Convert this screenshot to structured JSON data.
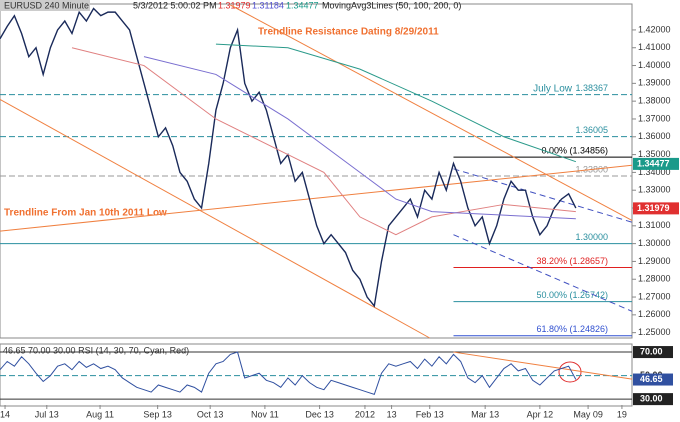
{
  "chart_data": {
    "type": "line",
    "header": {
      "instrument": "EURUSD 240 Minute",
      "time": "5/3/2012 5:00:02 PM",
      "price1": "1.31979",
      "price2": "1.31184",
      "price3": "1.34477",
      "indicator": "MovingAvg3Lines (50, 100, 200, 0)"
    },
    "annotations": [
      "Trendline Resistance Dating 8/29/2011",
      "Trendline From Jan 10th 2011 Low"
    ],
    "x": [
      0,
      1,
      2,
      3,
      4,
      5,
      6,
      7,
      8,
      9,
      10,
      11,
      12,
      13,
      14,
      15,
      16,
      17,
      18,
      19,
      20,
      21,
      22,
      23,
      24,
      25,
      26,
      27,
      28,
      29,
      30,
      31,
      32,
      33,
      34,
      35,
      36,
      37,
      38,
      39,
      40,
      41,
      42,
      43,
      44,
      45,
      46,
      47,
      48,
      49,
      50,
      51,
      52,
      53,
      54,
      55,
      56,
      57,
      58,
      59,
      60,
      61,
      62,
      63,
      64,
      65,
      66,
      67,
      68,
      69,
      70,
      71,
      72,
      73,
      74,
      75,
      76,
      77,
      78,
      79,
      80
    ],
    "xlim": [
      0,
      87.8
    ],
    "xticks": [
      {
        "value": 0.7,
        "label": "14"
      },
      {
        "value": 6.5,
        "label": "Jul 13"
      },
      {
        "value": 13.9,
        "label": "Aug 11"
      },
      {
        "value": 21.9,
        "label": "Sep 13"
      },
      {
        "value": 29.2,
        "label": "Oct 13"
      },
      {
        "value": 36.8,
        "label": "Nov 11"
      },
      {
        "value": 44.4,
        "label": "Dec 13"
      },
      {
        "value": 50.7,
        "label": "2012"
      },
      {
        "value": 54.4,
        "label": "13"
      },
      {
        "value": 59.7,
        "label": "Feb 13"
      },
      {
        "value": 67.4,
        "label": "Mar 13"
      },
      {
        "value": 75.0,
        "label": "Apr 12"
      },
      {
        "value": 81.7,
        "label": "May 09"
      },
      {
        "value": 86.4,
        "label": "19"
      }
    ],
    "ylim": [
      1.247,
      1.434
    ],
    "yticks": [
      {
        "value": 1.25,
        "label": "1.25000"
      },
      {
        "value": 1.26,
        "label": "1.26000"
      },
      {
        "value": 1.27,
        "label": "1.27000"
      },
      {
        "value": 1.28,
        "label": "1.28000"
      },
      {
        "value": 1.29,
        "label": "1.29000"
      },
      {
        "value": 1.3,
        "label": "1.30000"
      },
      {
        "value": 1.31,
        "label": "1.31000"
      },
      {
        "value": 1.32,
        "label": "1.32000"
      },
      {
        "value": 1.33,
        "label": "1.33000"
      },
      {
        "value": 1.34,
        "label": "1.34000"
      },
      {
        "value": 1.35,
        "label": "1.35000"
      },
      {
        "value": 1.36,
        "label": "1.36000"
      },
      {
        "value": 1.37,
        "label": "1.37000"
      },
      {
        "value": 1.38,
        "label": "1.38000"
      },
      {
        "value": 1.39,
        "label": "1.39000"
      },
      {
        "value": 1.4,
        "label": "1.40000"
      },
      {
        "value": 1.41,
        "label": "1.41000"
      },
      {
        "value": 1.42,
        "label": "1.42000"
      }
    ],
    "series": [
      {
        "name": "EURUSD",
        "color": "#1a2a5a",
        "values": [
          1.415,
          1.422,
          1.428,
          1.418,
          1.405,
          1.41,
          1.395,
          1.41,
          1.42,
          1.425,
          1.418,
          1.43,
          1.425,
          1.432,
          1.428,
          1.43,
          1.43,
          1.425,
          1.42,
          1.405,
          1.39,
          1.375,
          1.36,
          1.365,
          1.355,
          1.34,
          1.335,
          1.325,
          1.32,
          1.345,
          1.375,
          1.39,
          1.41,
          1.42,
          1.39,
          1.38,
          1.385,
          1.375,
          1.36,
          1.345,
          1.35,
          1.335,
          1.34,
          1.325,
          1.31,
          1.3,
          1.305,
          1.3,
          1.295,
          1.285,
          1.28,
          1.27,
          1.265,
          1.29,
          1.31,
          1.315,
          1.32,
          1.325,
          1.315,
          1.33,
          1.325,
          1.34,
          1.33,
          1.345,
          1.335,
          1.32,
          1.31,
          1.315,
          1.3,
          1.31,
          1.325,
          1.335,
          1.33,
          1.33,
          1.315,
          1.305,
          1.31,
          1.32,
          1.325,
          1.328,
          1.32
        ]
      },
      {
        "name": "MA 50",
        "color": "#e08080",
        "x": [
          10,
          20,
          30,
          40,
          45,
          50,
          55,
          60,
          70,
          80
        ],
        "values": [
          1.41,
          1.4,
          1.37,
          1.35,
          1.34,
          1.315,
          1.305,
          1.315,
          1.322,
          1.318
        ]
      },
      {
        "name": "MA 100",
        "color": "#7a6fd0",
        "x": [
          20,
          30,
          40,
          50,
          55,
          60,
          70,
          80
        ],
        "values": [
          1.405,
          1.395,
          1.37,
          1.34,
          1.325,
          1.318,
          1.316,
          1.314
        ]
      },
      {
        "name": "MA 200",
        "color": "#2a9a8a",
        "x": [
          30,
          40,
          50,
          60,
          70,
          80
        ],
        "values": [
          1.412,
          1.41,
          1.398,
          1.38,
          1.36,
          1.346
        ]
      }
    ],
    "levels": [
      {
        "value": 1.38367,
        "label": "1.38367",
        "note": "July Low",
        "color": "#2a8f9f",
        "dash": true,
        "x_start": 0
      },
      {
        "value": 1.36005,
        "label": "1.36005",
        "color": "#2a8f9f",
        "dash": true,
        "x_start": 0
      },
      {
        "value": 1.34856,
        "label": "0.00% (1.34856)",
        "color": "#000000",
        "dash": false,
        "x_start": 63
      },
      {
        "value": 1.338,
        "label": "1.33800",
        "color": "#999999",
        "dash": true,
        "x_start": 0
      },
      {
        "value": 1.3,
        "label": "1.30000",
        "color": "#2a8f9f",
        "dash": false,
        "x_start": 0
      },
      {
        "value": 1.28657,
        "label": "38.20% (1.28657)",
        "color": "#e02020",
        "dash": false,
        "x_start": 63
      },
      {
        "value": 1.26742,
        "label": "50.00% (1.26742)",
        "color": "#2a8f9f",
        "dash": false,
        "x_start": 63
      },
      {
        "value": 1.24826,
        "label": "61.80% (1.24826)",
        "color": "#3050d0",
        "dash": false,
        "x_start": 63
      }
    ],
    "trendlines": [
      {
        "color": "#f08040",
        "points": [
          [
            32,
            1.434
          ],
          [
            87.8,
            1.313
          ]
        ]
      },
      {
        "color": "#f08040",
        "points": [
          [
            0,
            1.307
          ],
          [
            87.8,
            1.344
          ]
        ]
      },
      {
        "color": "#f08040",
        "points": [
          [
            0,
            1.381
          ],
          [
            59.7,
            1.247
          ]
        ]
      },
      {
        "color": "#4050c0",
        "dash": true,
        "points": [
          [
            63,
            1.342
          ],
          [
            87.8,
            1.312
          ]
        ]
      },
      {
        "color": "#4050c0",
        "dash": true,
        "points": [
          [
            63,
            1.305
          ],
          [
            87.8,
            1.262
          ]
        ]
      }
    ],
    "price_tags": [
      {
        "value": 1.34477,
        "label": "1.34477",
        "color": "#1a9a8a"
      },
      {
        "value": 1.31979,
        "label": "1.31979",
        "color": "#e03030"
      }
    ],
    "rsi": {
      "header": "46.65 70.00 30.00 RSI (14, 30, 70, Cyan, Red)",
      "color": "#3050a0",
      "values": [
        55,
        62,
        58,
        66,
        60,
        52,
        45,
        50,
        58,
        60,
        55,
        62,
        57,
        60,
        56,
        58,
        55,
        48,
        44,
        40,
        38,
        36,
        42,
        40,
        38,
        36,
        42,
        40,
        36,
        52,
        60,
        62,
        68,
        70,
        48,
        50,
        52,
        46,
        44,
        40,
        48,
        42,
        50,
        44,
        40,
        38,
        46,
        44,
        42,
        40,
        38,
        36,
        34,
        52,
        60,
        58,
        60,
        62,
        56,
        64,
        58,
        66,
        60,
        68,
        62,
        48,
        44,
        50,
        40,
        48,
        56,
        60,
        54,
        56,
        46,
        42,
        48,
        54,
        56,
        58,
        46.65
      ],
      "ylim": [
        25,
        76
      ],
      "yticks": [
        {
          "value": 30,
          "label": "30.00"
        },
        {
          "value": 50,
          "label": "50.00"
        },
        {
          "value": 70,
          "label": "70.00"
        }
      ],
      "last_label": "46.65",
      "trendline": {
        "color": "#f08040",
        "points": [
          [
            63,
            70
          ],
          [
            87.8,
            47
          ]
        ]
      }
    }
  }
}
